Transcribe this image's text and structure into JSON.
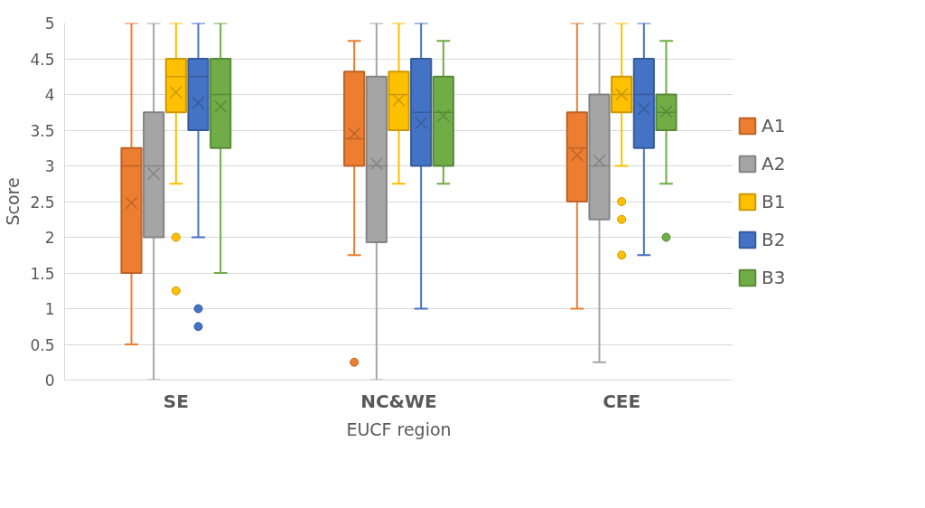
{
  "chart_data": {
    "type": "box",
    "xlabel": "EUCF region",
    "ylabel": "Score",
    "categories": [
      "SE",
      "NC&WE",
      "CEE"
    ],
    "ylim": [
      0,
      5
    ],
    "yticks": [
      0,
      0.5,
      1,
      1.5,
      2,
      2.5,
      3,
      3.5,
      4,
      4.5,
      5
    ],
    "grid": "y",
    "legend": "right",
    "series": [
      {
        "name": "A1",
        "color": "#ed7d31",
        "boxes": [
          {
            "low": 0.5,
            "q1": 1.5,
            "median": 3.0,
            "q3": 3.25,
            "high": 5,
            "mean": 2.48
          },
          {
            "low": 1.75,
            "q1": 3.0,
            "median": 3.38,
            "q3": 4.32,
            "high": 4.75,
            "mean": 3.45,
            "outliers": [
              0.25
            ]
          },
          {
            "low": 1.0,
            "q1": 2.5,
            "median": 3.25,
            "q3": 3.75,
            "high": 5,
            "mean": 3.15
          }
        ]
      },
      {
        "name": "A2",
        "color": "#a5a5a5",
        "boxes": [
          {
            "low": 0,
            "q1": 2.0,
            "median": 3.0,
            "q3": 3.75,
            "high": 5,
            "mean": 2.89
          },
          {
            "low": 0,
            "q1": 1.93,
            "median": 3.0,
            "q3": 4.25,
            "high": 5,
            "mean": 3.03
          },
          {
            "low": 0.25,
            "q1": 2.25,
            "median": 3.0,
            "q3": 4.0,
            "high": 5,
            "mean": 3.07
          }
        ]
      },
      {
        "name": "B1",
        "color": "#ffc000",
        "boxes": [
          {
            "low": 2.75,
            "q1": 3.75,
            "median": 4.25,
            "q3": 4.5,
            "high": 5,
            "mean": 4.03,
            "outliers": [
              2.0,
              1.25
            ]
          },
          {
            "low": 2.75,
            "q1": 3.5,
            "median": 4.0,
            "q3": 4.32,
            "high": 5,
            "mean": 3.92
          },
          {
            "low": 3.0,
            "q1": 3.75,
            "median": 4.0,
            "q3": 4.25,
            "high": 5,
            "mean": 4.0,
            "outliers": [
              2.5,
              2.25,
              1.75
            ]
          }
        ]
      },
      {
        "name": "B2",
        "color": "#4472c4",
        "boxes": [
          {
            "low": 2.0,
            "q1": 3.5,
            "median": 4.25,
            "q3": 4.5,
            "high": 5,
            "mean": 3.88,
            "outliers": [
              1.0,
              0.75
            ]
          },
          {
            "low": 1.0,
            "q1": 3.0,
            "median": 3.75,
            "q3": 4.5,
            "high": 5,
            "mean": 3.6
          },
          {
            "low": 1.75,
            "q1": 3.25,
            "median": 4.0,
            "q3": 4.5,
            "high": 5,
            "mean": 3.8
          }
        ]
      },
      {
        "name": "B3",
        "color": "#70ad47",
        "boxes": [
          {
            "low": 1.5,
            "q1": 3.25,
            "median": 4.0,
            "q3": 4.5,
            "high": 5,
            "mean": 3.83
          },
          {
            "low": 2.75,
            "q1": 3.0,
            "median": 3.75,
            "q3": 4.25,
            "high": 4.75,
            "mean": 3.7
          },
          {
            "low": 2.75,
            "q1": 3.5,
            "median": 3.75,
            "q3": 4.0,
            "high": 4.75,
            "mean": 3.76,
            "outliers": [
              2.0
            ]
          }
        ]
      }
    ]
  }
}
